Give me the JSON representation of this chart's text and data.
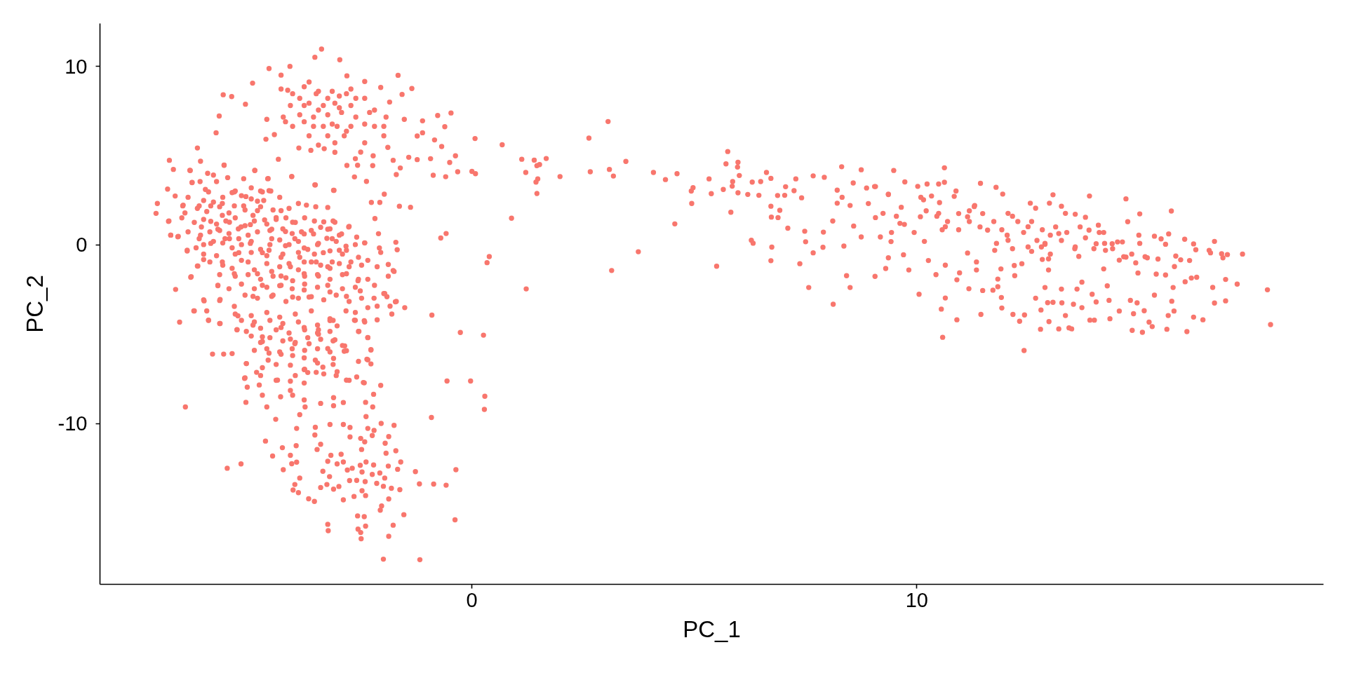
{
  "chart_data": {
    "type": "scatter",
    "xlabel": "PC_1",
    "ylabel": "PC_2",
    "xlim": [
      -8.36,
      19.14
    ],
    "ylim": [
      -19.0,
      12.4
    ],
    "xticks": [
      0,
      10
    ],
    "yticks": [
      -10,
      0,
      10
    ],
    "grid": false,
    "marker": "circle",
    "series": [
      {
        "color": "#f8766d",
        "x": [
          -3.38,
          -3.53,
          -2.97,
          -4.09,
          -4.56,
          -4.93,
          -5.59,
          -5.4,
          -5.68,
          -5.75,
          -6.17,
          -5.09,
          -1.66,
          -1.35,
          -0.47,
          -0.77,
          0.07,
          0.0,
          0.08,
          -0.32,
          -0.59,
          -0.87,
          -0.37,
          -0.5,
          -0.93,
          -1.23,
          -1.42,
          -1.61,
          -1.7,
          -1.77,
          -0.68,
          -0.84,
          -1.11,
          -1.23,
          -1.11,
          -1.52,
          -0.61,
          -3.66,
          -4.29,
          -2.81,
          -2.41,
          -2.05,
          -1.85,
          -1.57,
          -4.14,
          -3.87,
          -3.5,
          -3.14,
          -2.72,
          -2.98,
          -3.45,
          -3.77,
          -4.19,
          -4.61,
          -4.63,
          -4.44,
          -3.56,
          -3.14,
          -2.82,
          -2.41,
          -2.19,
          -1.98,
          -1.89,
          -2.41,
          -3.08,
          -3.32,
          -3.62,
          -3.89,
          -4.35,
          -2.5,
          -2.22,
          -2.62,
          -2.81,
          -2.57,
          -2.23,
          -2.64,
          -2.37,
          -4.05,
          -3.53,
          -3.11,
          -6.8,
          -6.71,
          -6.1,
          -6.34,
          -5.57,
          -4.88,
          -4.58,
          -6.84,
          -7.07,
          -7.1,
          -6.82,
          -6.77,
          -6.6,
          -6.4,
          -6.66,
          -6.32,
          -6.16,
          -6.03,
          -6.5,
          -6.29,
          -5.92,
          -6.13,
          -6.08,
          -5.87,
          -5.61,
          -5.34,
          -5.13,
          -5.45,
          -5.24,
          -4.98,
          -4.71,
          -4.56,
          -4.82,
          -4.5,
          -4.29,
          -4.03,
          -3.77,
          -4.56,
          -4.19,
          -3.87,
          -3.45,
          -3.24,
          -3.08,
          -2.77,
          -2.59,
          -2.98,
          -2.72,
          -2.41,
          -2.1,
          -2.18,
          -2.26,
          -2.07,
          -1.97,
          -1.63,
          -1.38,
          -1.71,
          -1.68,
          -2.08,
          -0.7,
          -0.58,
          0.34,
          0.39,
          -1.88,
          -1.75,
          -1.96,
          -1.72,
          -1.51,
          -2.19,
          -2.51,
          -2.82,
          -3.24,
          -3.66,
          -4.03,
          -4.5,
          -4.92,
          -5.34,
          -5.71,
          -5.66,
          -6.02,
          -4.82,
          -4.29,
          -3.77,
          -3.24,
          -2.82,
          -2.56,
          -5.87,
          -5.61,
          -5.34,
          -5.08,
          -4.82,
          -5.45,
          -5.19,
          -4.92,
          -4.66,
          -4.4,
          -4.19,
          -3.98,
          -3.77,
          -3.56,
          -3.34,
          -3.14,
          -2.93,
          -4.5,
          -4.29,
          -4.08,
          -3.77,
          -3.5,
          -4.71,
          -4.98,
          -5.24,
          -5.55,
          -5.71,
          -5.87,
          -6.13,
          -5.03,
          -4.5,
          -4.03,
          -3.45,
          -3.14,
          -2.82,
          -4.29,
          -4.71,
          -3.77,
          -5.34,
          -5.61,
          -6.57,
          -6.25,
          -5.92,
          -5.66,
          -5.83,
          -5.58,
          -5.39,
          -6.44,
          -5.5,
          -5.19,
          -5.28,
          -5.07,
          -5.11,
          -5.05,
          -5.08,
          -4.71,
          -4.61,
          -4.41,
          -4.78,
          -4.84,
          -4.71,
          -4.56,
          -4.29,
          -4.08,
          -3.77,
          -3.45,
          -3.19,
          -3.03,
          -3.24,
          -3.08,
          -3.35,
          -3.03,
          -3.77,
          -4.08,
          -4.03,
          -3.77,
          -3.4,
          -3.11,
          -3.87,
          -2.89,
          -2.82,
          -2.59,
          -2.44,
          -2.05,
          -2.21,
          -2.39,
          -2.23,
          -2.38,
          -2.86,
          -2.82,
          -2.54,
          -2.34,
          -2.27,
          -2.36,
          -2.27,
          -2.64,
          -2.42,
          -2.13,
          -1.8,
          -0.9,
          -0.26,
          0.26,
          -0.56,
          -0.03,
          0.29,
          0.28,
          -0.91,
          -3.52,
          -3.53,
          -3.4,
          -3.48,
          -3.19,
          -2.89,
          -2.74,
          -3.94,
          -4.64,
          -4.26,
          -3.95,
          -4.48,
          -4.08,
          -3.94,
          -4.24,
          -4.05,
          -3.87,
          -3.98,
          -4.02,
          -3.9,
          -3.67,
          -3.54,
          -3.4,
          -3.26,
          -3.11,
          -2.99,
          -2.89,
          -3.35,
          -3.2,
          -3.24,
          -3.17,
          -2.94,
          -3.03,
          -2.89,
          -2.8,
          -2.69,
          -2.51,
          -2.47,
          -2.75,
          -2.59,
          -2.4,
          -2.47,
          -2.39,
          -2.65,
          -2.74,
          -2.5,
          -2.41,
          -2.48,
          -2.38,
          -2.21,
          -2.04,
          -1.75,
          -2.34,
          -2.2,
          -2.24,
          -1.87,
          -1.95,
          -1.71,
          -1.93,
          -1.6,
          -1.88,
          -1.67,
          -2.07,
          -2.24,
          -1.96,
          -2.14,
          -1.99,
          -1.81,
          -1.62,
          -1.87,
          -1.27,
          -1.18,
          -0.86,
          -0.58,
          -0.36,
          -0.38,
          -2.03,
          -2.06,
          -1.53,
          -2.57,
          -2.42,
          -3.24,
          -3.23,
          -2.56,
          -2.5,
          -2.39,
          -2.49,
          -1.77,
          -1.87,
          -1.99,
          -1.17,
          -5.26,
          -4.92,
          -4.71,
          -4.58,
          -4.37,
          -4.3,
          -4.08,
          -3.77,
          -3.75,
          -3.5,
          -3.11,
          -3.11,
          -3.77,
          -4.03,
          -3.52,
          -3.98,
          -3.66,
          -4.29,
          -3.45,
          0.68,
          1.12,
          1.4,
          1.46,
          1.52,
          1.67,
          1.21,
          1.48,
          1.44,
          1.46,
          1.98,
          2.63,
          3.06,
          2.66,
          3.09,
          3.18,
          3.46,
          0.89,
          1.22,
          3.14,
          3.74,
          4.08,
          4.35,
          4.61,
          4.93,
          4.97,
          4.94,
          4.56,
          5.33,
          5.38,
          5.5,
          5.65,
          5.75,
          5.71,
          5.98,
          5.97,
          6.01,
          5.86,
          5.85,
          5.98,
          5.82,
          6.2,
          6.3,
          6.49,
          6.62,
          6.72,
          6.45,
          6.72,
          6.73,
          6.88,
          6.92,
          6.28,
          6.32,
          6.74,
          6.72,
          7.1,
          7.37,
          7.05,
          7.28,
          7.24,
          7.03,
          6.87,
          7.41,
          7.48,
          7.5,
          8.31,
          10.62,
          8.75,
          9.48,
          7.67,
          7.57,
          8.12,
          8.5,
          8.42,
          7.67,
          7.89,
          7.9,
          7.92,
          8.21,
          8.21,
          8.11,
          8.36,
          8.58,
          8.57,
          8.75,
          8.87,
          9.07,
          8.91,
          9.07,
          9.18,
          9.06,
          9.3,
          9.36,
          9.42,
          9.43,
          9.36,
          9.65,
          9.73,
          9.7,
          9.82,
          10.05,
          9.94,
          10.02,
          10.23,
          10.49,
          10.62,
          10.26,
          10.17,
          10.43,
          10.55,
          10.58,
          10.64,
          10.64,
          10.9,
          10.9,
          10.96,
          10.88,
          10.84,
          11.14,
          11.17,
          11.34,
          11.34,
          11.44,
          11.43,
          11.48,
          11.71,
          11.78,
          11.93,
          11.82,
          11.82,
          11.9,
          11.91,
          11.89,
          12.16,
          12.31,
          12.42,
          12.41,
          12.19,
          12.2,
          12.36,
          12.67,
          12.78,
          12.79,
          12.55,
          12.67,
          13.06,
          12.98,
          12.88,
          12.96,
          12.96,
          12.88,
          12.94,
          12.97,
          13.06,
          13.19,
          13.25,
          13.25,
          13.26,
          13.34,
          13.42,
          13.48,
          13.52,
          13.34,
          13.56,
          13.79,
          13.64,
          13.71,
          13.6,
          13.71,
          13.88,
          13.89,
          13.99,
          13.94,
          14.03,
          14.08,
          14.2,
          14.24,
          14.2,
          14.28,
          14.32,
          14.34,
          14.55,
          14.51,
          14.62,
          14.7,
          14.74,
          14.7,
          14.8,
          14.84,
          14.87,
          14.95,
          14.99,
          15.01,
          14.92,
          14.97,
          15.07,
          15.11,
          15.18,
          15.22,
          15.29,
          15.34,
          15.34,
          15.38,
          15.42,
          15.49,
          15.59,
          15.59,
          15.62,
          15.65,
          15.66,
          15.72,
          15.73,
          15.78,
          15.79,
          15.76,
          15.82,
          15.93,
          16.02,
          16.03,
          16.07,
          16.13,
          16.17,
          16.22,
          16.22,
          16.27,
          16.29,
          16.43,
          16.57,
          16.6,
          16.65,
          16.69,
          16.69,
          16.85,
          16.88,
          16.94,
          16.94,
          16.98,
          17.2,
          17.32,
          17.88,
          17.95,
          10.15,
          10.49,
          10.64,
          11.14,
          11.29,
          11.59,
          12.05,
          12.05,
          12.5,
          12.8,
          13.19,
          13.56,
          14.03,
          13.87,
          12.5,
          11.75,
          10.08,
          9.62,
          9.24,
          14.39,
          14.55,
          -6.33,
          -5.94,
          -5.81,
          -5.57,
          -5.13,
          -4.88,
          -4.59,
          -4.05,
          -3.52,
          -3.1,
          -6.29,
          -6.11,
          -5.99,
          -5.74,
          -5.49,
          -5.32,
          -4.96,
          -4.75,
          -4.52,
          -6.67,
          -6.49,
          -6.38,
          -6.03,
          -5.81,
          -5.6,
          -5.39,
          -5.18,
          -4.96,
          -4.68,
          -4.32,
          -4.11,
          -3.9,
          -3.72,
          -3.51,
          -3.24,
          -6.45,
          -6.17,
          -5.96,
          -5.67,
          -5.46,
          -5.1,
          -4.75,
          -4.47,
          -6.81,
          -6.52,
          -6.24,
          -6.03,
          -5.74,
          -5.53,
          -5.32,
          -5.1,
          -4.89,
          -4.61,
          -4.4,
          -4.18,
          -3.97,
          -3.76,
          -3.54,
          -3.33,
          -3.12,
          -2.76,
          -6.77,
          -6.61,
          -6.38,
          -6.1,
          -5.89,
          -5.67,
          -5.46,
          -5.25,
          -5.03,
          -4.82,
          -4.54,
          -4.25,
          -4.04,
          -3.83,
          -3.61,
          -3.4,
          -3.19,
          -2.98,
          -6.4,
          -6.2,
          -6.03,
          -5.81,
          -5.6,
          -5.39,
          -5.18,
          -4.96,
          -4.75,
          -4.54,
          -4.32,
          -4.11,
          -3.9,
          -3.69,
          -3.47,
          -3.26,
          -3.05,
          -2.83,
          -2.62,
          -2.41,
          -6.03,
          -5.74,
          -5.32,
          -4.96,
          -4.61,
          -4.25,
          -3.9,
          -3.54,
          -3.19,
          -2.91,
          -2.55,
          -2.34,
          -2.05,
          -6.17,
          -5.89,
          -5.6,
          -5.39,
          -5.18,
          -4.89,
          -4.61,
          -4.32,
          -4.11,
          -3.9,
          -3.61,
          -3.4,
          -3.19,
          -2.98,
          -2.76,
          -2.48,
          -2.13,
          -1.77,
          -6.31,
          -5.67,
          -5.32,
          -5.03,
          -4.75,
          -4.47,
          -4.18,
          -3.76,
          -3.47,
          -3.19,
          -2.91,
          -2.55,
          -2.34,
          -1.88,
          -5.71,
          -5.46,
          -5.18,
          -4.89,
          -4.61,
          -4.32,
          -4.04,
          -3.76,
          -3.47,
          -3.19,
          -2.91,
          -2.62,
          -6.03,
          -5.67,
          -5.1,
          -4.82,
          -4.47,
          -4.18,
          -3.9,
          -3.61,
          -3.33,
          -3.05,
          -2.76,
          -2.48,
          -2.2,
          -1.91,
          -1.7,
          -1.98,
          -6.24,
          -5.96,
          -5.32,
          -4.96,
          -4.61,
          -4.32,
          -3.97,
          -3.61,
          -3.19,
          -2.83,
          -2.62,
          -2.34,
          -2.13,
          -1.84,
          -5.92,
          -5.67,
          -5.18,
          -4.89,
          -4.54,
          -4.25,
          -3.9,
          -3.47,
          -3.12,
          -2.62,
          -2.41,
          -5.28,
          -5.07,
          -4.75,
          -4.4,
          -4.11,
          -3.76,
          -3.47,
          -3.19,
          -2.55,
          -4.96,
          -4.75,
          -4.54,
          -4.25,
          -3.97,
          -3.69,
          -3.4,
          -3.12,
          -2.91,
          -2.34,
          -4.89,
          -4.61,
          -4.32,
          -4.04,
          -3.76,
          -3.47,
          -3.19,
          -2.87,
          -2.27,
          -5.07,
          -4.71,
          -4.4,
          -4.08,
          -3.76,
          -3.47,
          -3.12,
          -2.55,
          -2.34,
          -5.1,
          -4.75,
          -4.4,
          -3.97,
          -3.69,
          -3.33,
          -3.05,
          -2.76,
          -2.42,
          -4.29,
          -4.03,
          -3.77,
          -3.45,
          -3.24,
          -2.98,
          -2.82,
          -2.61,
          -4.08,
          -3.66,
          -3.34,
          -3.08,
          -2.72,
          -2.41,
          -4.24,
          -3.87,
          -3.56,
          -3.24,
          -2.93,
          -2.61,
          -2.3,
          -4.03,
          -3.77,
          -3.34,
          -3.03,
          -2.72,
          -2.19,
          -1.93,
          -3.66,
          -3.24,
          -2.87,
          -1.98,
          -3.45,
          -3.08,
          10.09,
          10.33,
          10.51,
          10.21,
          10.45,
          10.69,
          10.94,
          11.18,
          11.3,
          11.48,
          11.42,
          11.73,
          11.91,
          12.15,
          12.03,
          12.27,
          12.4,
          12.58,
          12.7,
          12.82,
          12.88,
          13.0,
          13.12,
          13.25,
          13.37,
          13.55,
          13.67,
          13.79,
          13.98,
          14.1,
          14.22,
          14.4,
          14.65,
          14.83,
          15.01,
          15.13,
          12.82,
          13.0,
          12.58,
          12.15,
          11.79,
          11.18,
          10.94,
          10.57,
          9.54,
          9.72,
          9.36,
          9.05,
          8.32,
          8.5
        ],
        "values": [
          10.97,
          10.51,
          10.37,
          10.0,
          9.88,
          9.06,
          8.41,
          8.31,
          7.22,
          6.28,
          5.43,
          7.88,
          9.5,
          8.76,
          7.39,
          7.25,
          5.96,
          4.12,
          3.99,
          4.1,
          3.82,
          3.9,
          4.99,
          4.62,
          4.83,
          4.78,
          4.91,
          4.31,
          3.94,
          4.74,
          5.51,
          5.88,
          6.28,
          6.1,
          6.95,
          7.03,
          6.62,
          9.12,
          9.51,
          9.47,
          9.15,
          8.82,
          8.0,
          8.43,
          8.66,
          8.21,
          8.47,
          8.6,
          8.73,
          7.68,
          7.55,
          7.81,
          6.9,
          7.03,
          5.92,
          6.18,
          6.64,
          6.77,
          6.37,
          6.77,
          7.55,
          6.64,
          5.46,
          5.72,
          5.19,
          5.39,
          5.3,
          5.43,
          4.8,
          5.2,
          4.99,
          4.83,
          4.45,
          4.46,
          4.44,
          3.81,
          3.56,
          3.82,
          3.36,
          3.06,
          4.74,
          4.23,
          4.69,
          4.18,
          4.46,
          4.18,
          3.72,
          3.13,
          2.32,
          1.77,
          1.32,
          0.55,
          0.48,
          -0.34,
          -2.49,
          -1.81,
          -1.18,
          -0.82,
          2.19,
          3.49,
          2.97,
          2.19,
          1.01,
          1.32,
          2.32,
          2.97,
          2.19,
          1.27,
          0.35,
          1.14,
          2.97,
          3.04,
          1.92,
          0.88,
          1.92,
          1.27,
          0.62,
          -0.3,
          -0.04,
          -0.69,
          0.09,
          0.88,
          1.27,
          1.01,
          0.44,
          -0.3,
          -0.95,
          0.12,
          0.63,
          1.48,
          2.38,
          2.38,
          2.84,
          2.17,
          2.11,
          0.15,
          -0.27,
          -0.17,
          0.39,
          0.64,
          -0.99,
          -0.65,
          -1.09,
          -1.48,
          -2.72,
          -3.18,
          -3.51,
          -2.26,
          -2.57,
          -2.88,
          -2.26,
          -2.92,
          -2.92,
          -2.88,
          -2.88,
          -3.44,
          -2.26,
          -3.05,
          -3.13,
          -1.61,
          -1.74,
          -1.61,
          -1.22,
          -1.61,
          -2.0,
          2.19,
          1.66,
          2.19,
          2.71,
          2.45,
          0.35,
          1.01,
          1.66,
          1.4,
          1.53,
          0.75,
          0.35,
          -0.17,
          0.62,
          -0.43,
          0.35,
          0.62,
          0.35,
          -0.69,
          -1.22,
          -0.95,
          -0.95,
          -0.43,
          0.09,
          -0.43,
          0.35,
          0.88,
          0.09,
          0.35,
          -0.95,
          -1.48,
          -2.0,
          -1.74,
          -0.95,
          -0.3,
          -2.26,
          -2.26,
          -2.52,
          -1.61,
          -0.95,
          -4.32,
          -3.69,
          -4.21,
          -4.4,
          -6.11,
          -6.11,
          -6.08,
          -9.07,
          -12.5,
          -12.26,
          -4.74,
          -6.64,
          -7.47,
          -7.96,
          -8.81,
          -8.41,
          -9.07,
          -9.76,
          -7.84,
          -7.13,
          -5.14,
          -6.06,
          -4.62,
          -5.27,
          -4.62,
          -4.75,
          -4.23,
          -4.53,
          -5.8,
          -5.31,
          -6.84,
          -7.1,
          -6.98,
          -7.63,
          -8.41,
          -8.68,
          -8.87,
          -9.0,
          -9.5,
          -8.82,
          -7.57,
          -7.39,
          -7.7,
          -7.86,
          -8.36,
          -8.81,
          -9.07,
          -9.61,
          -5.65,
          -5.92,
          -4.84,
          -5.18,
          -5.88,
          -6.4,
          -6.66,
          -4.21,
          -4.24,
          -4.19,
          -3.87,
          -3.93,
          -4.9,
          -5.05,
          -7.62,
          -7.62,
          -8.47,
          -9.21,
          -9.66,
          -10.21,
          -10.64,
          -11.16,
          -11.45,
          -10.05,
          -10.05,
          -10.22,
          -10.27,
          -10.98,
          -11.35,
          -11.24,
          -11.82,
          -11.78,
          -12.16,
          -12.58,
          -12.25,
          -13.05,
          -13.41,
          -13.72,
          -13.87,
          -14.21,
          -14.36,
          -13.58,
          -13.41,
          -13.67,
          -13.52,
          -14.27,
          -12.67,
          -12.97,
          -12.11,
          -11.78,
          -11.72,
          -12.26,
          -12.15,
          -12.6,
          -12.5,
          -12.34,
          -12.71,
          -13.19,
          -13.18,
          -13.25,
          -13.76,
          -14.03,
          -14.08,
          -10.75,
          -10.83,
          -11.02,
          -11.45,
          -12.15,
          -12.32,
          -9.99,
          -10.1,
          -10.27,
          -10.38,
          -10.67,
          -10.73,
          -11.1,
          -11.52,
          -11.66,
          -12.15,
          -12.38,
          -12.56,
          -12.77,
          -12.85,
          -13.05,
          -13.35,
          -13.51,
          -13.62,
          -13.7,
          -14.22,
          -12.69,
          -13.38,
          -13.39,
          -13.45,
          -12.58,
          -15.39,
          -14.61,
          -14.85,
          -15.1,
          -15.17,
          -15.21,
          -15.64,
          -16.0,
          -15.91,
          -16.1,
          -15.74,
          -16.45,
          -15.69,
          -16.31,
          -17.59,
          -17.62,
          -3.97,
          -4.49,
          -5.41,
          -6.45,
          -7.57,
          -8.5,
          -8.15,
          -7.73,
          -9.07,
          -7.13,
          -8.55,
          -6.35,
          -6.32,
          -6.19,
          -6.45,
          -5.53,
          -5.53,
          -6.12,
          -5.0,
          5.61,
          4.8,
          4.75,
          4.44,
          4.5,
          4.84,
          4.06,
          3.7,
          3.52,
          2.88,
          3.83,
          5.98,
          6.91,
          4.1,
          4.23,
          3.86,
          4.68,
          1.5,
          -2.46,
          -1.43,
          -0.38,
          4.06,
          3.66,
          3.99,
          3.02,
          3.21,
          2.32,
          1.18,
          3.7,
          2.87,
          -1.19,
          3.11,
          5.23,
          4.54,
          4.63,
          4.36,
          3.89,
          3.55,
          3.29,
          2.92,
          1.83,
          2.83,
          3.52,
          3.55,
          4.06,
          3.73,
          2.78,
          2.17,
          1.56,
          1.53,
          1.94,
          0.26,
          0.1,
          -0.12,
          -0.88,
          0.94,
          -1.05,
          3.26,
          3.7,
          3.04,
          2.78,
          2.77,
          2.64,
          0.77,
          0.18,
          4.38,
          4.32,
          4.21,
          4.17,
          3.87,
          -2.38,
          -3.32,
          -2.38,
          -1.72,
          -0.44,
          -0.13,
          0.72,
          3.79,
          3.07,
          2.34,
          1.34,
          -0.06,
          1.06,
          3.47,
          0.45,
          3.19,
          3.27,
          2.32,
          1.53,
          0.45,
          -1.76,
          -1.32,
          -0.72,
          0.19,
          0.7,
          2.85,
          2.11,
          3.53,
          -0.55,
          -1.4,
          -2.76,
          0.7,
          3.28,
          3.41,
          3.41,
          3.51,
          -0.87,
          0.2,
          -1.66,
          -3.59,
          -5.17,
          -2.97,
          -1.13,
          -4.19,
          -1.95,
          -1.56,
          3.02,
          2.72,
          -0.45,
          -2.45,
          -0.95,
          -1.4,
          -3.89,
          3.45,
          -2.55,
          -2.53,
          3.23,
          2.85,
          -1.91,
          -2.34,
          -2.94,
          -3.53,
          -1.34,
          -3.89,
          -4.27,
          -3.92,
          -5.91,
          -1.15,
          -1.72,
          -1.05,
          -2.98,
          -4.72,
          -3.64,
          2.34,
          2.06,
          2.81,
          2.34,
          0.04,
          -0.78,
          -1.4,
          -2.38,
          -3.23,
          -4.29,
          -3.21,
          -4.7,
          2.17,
          -2.47,
          -3.24,
          -3.95,
          -4.64,
          -4.7,
          -3.32,
          1.77,
          1.72,
          1.55,
          -0.64,
          -2.08,
          -2.47,
          -3.51,
          2.74,
          -4.21,
          -4.21,
          -2.76,
          -3.19,
          1.11,
          0.7,
          -0.3,
          -1.34,
          -2.29,
          -3.1,
          -4.13,
          -3.7,
          0.17,
          0.17,
          2.58,
          1.3,
          -0.68,
          -3.1,
          -4.78,
          -3.85,
          -3.24,
          0.55,
          1.74,
          -1.0,
          -1.57,
          -4.89,
          -3.68,
          -0.72,
          -4.32,
          -4.57,
          -2.81,
          0.49,
          -1.63,
          -0.79,
          0.34,
          0.04,
          -1.68,
          -4.72,
          -3.95,
          0.62,
          1.9,
          -3.15,
          -3.7,
          -1.21,
          -2.38,
          -0.62,
          -0.83,
          0.32,
          -2.06,
          -4.85,
          -0.87,
          -1.85,
          0.06,
          -4.04,
          -0.27,
          -1.81,
          -4.19,
          -0.3,
          -0.44,
          -2.38,
          0.2,
          -3.25,
          -0.49,
          -0.72,
          -1.93,
          -3.13,
          -0.54,
          -2.19,
          -0.51,
          -2.51,
          -4.46,
          2.53,
          1.77,
          1.02,
          1.58,
          2.15,
          0.83,
          1.77,
          0.26,
          1.02,
          -0.11,
          0.64,
          -0.11,
          0.07,
          0.83,
          -0.11,
          -0.3,
          1.58,
          1.21,
          1.77,
          0.07,
          -0.85,
          4.17,
          4.01,
          3.91,
          4.47,
          3.71,
          4.17,
          3.71,
          3.84,
          3.36,
          3.06,
          3.5,
          3.55,
          3.11,
          3.55,
          3.77,
          3.02,
          3.2,
          3.02,
          3.02,
          2.74,
          2.23,
          2.67,
          2.49,
          2.4,
          2.67,
          2.93,
          2.76,
          2.58,
          2.49,
          2.67,
          2.05,
          2.32,
          2.23,
          2.14,
          2.1,
          1.79,
          2.05,
          1.87,
          2.14,
          1.79,
          1.96,
          2.14,
          1.96,
          1.34,
          1.52,
          1.26,
          1.43,
          1.17,
          1.34,
          1.52,
          1.08,
          1.34,
          1.17,
          1.43,
          1.52,
          1.26,
          1.52,
          1.34,
          1.29,
          1.34,
          1.04,
          0.55,
          0.46,
          0.73,
          0.55,
          0.73,
          0.81,
          0.64,
          0.9,
          0.55,
          0.73,
          0.81,
          0.9,
          0.64,
          0.73,
          0.81,
          0.99,
          0.9,
          0.55,
          -0.3,
          -0.16,
          0.02,
          0.2,
          0.11,
          -0.16,
          0.02,
          0.2,
          -0.25,
          0.02,
          0.28,
          0.02,
          0.2,
          -0.25,
          0.02,
          0.37,
          0.2,
          -0.07,
          0.02,
          0.11,
          -0.51,
          -0.6,
          -0.51,
          -0.42,
          -0.6,
          -0.51,
          -0.42,
          -0.51,
          -0.33,
          -0.51,
          -0.69,
          -0.86,
          -0.42,
          -1.18,
          -0.95,
          -1.13,
          -1.31,
          -0.86,
          -1.39,
          -1.04,
          -1.22,
          -1.04,
          -1.39,
          -0.95,
          -1.13,
          -1.31,
          -1.04,
          -1.22,
          -1.13,
          -1.22,
          -1.43,
          -1.78,
          -1.66,
          -1.75,
          -1.66,
          -1.92,
          -1.75,
          -1.84,
          -1.75,
          -1.66,
          -1.92,
          -1.66,
          -1.92,
          -1.92,
          -1.75,
          -2.28,
          -2.45,
          -2.19,
          -2.45,
          -2.37,
          -2.28,
          -2.45,
          -2.19,
          -2.37,
          -2.63,
          -2.45,
          -2.37,
          -3.07,
          -3.11,
          -2.81,
          -2.98,
          -2.81,
          -3.16,
          -2.98,
          -2.9,
          -3.07,
          -2.81,
          -3.16,
          -2.98,
          -2.98,
          -2.9,
          -3.16,
          -2.72,
          -3.69,
          -3.69,
          -3.87,
          -3.96,
          -3.78,
          -4.04,
          -3.87,
          -3.69,
          -4.13,
          -3.69,
          -3.78,
          -3.51,
          -3.43,
          -3.43,
          -4.22,
          -4.4,
          -4.22,
          -4.31,
          -4.22,
          -4.4,
          -4.31,
          -4.49,
          -4.22,
          -4.22,
          -4.31,
          -4.75,
          -4.84,
          -4.66,
          -4.75,
          -4.93,
          -4.75,
          -4.93,
          -4.84,
          -4.84,
          -5.1,
          -5.46,
          -5.19,
          -5.37,
          -5.46,
          -5.19,
          -5.28,
          -5.37,
          -5.63,
          -5.19,
          -5.9,
          -5.81,
          -5.99,
          -5.81,
          -5.9,
          -5.81,
          -5.99,
          -5.95,
          -5.86,
          -6.64,
          -6.87,
          -6.69,
          -6.73,
          -6.96,
          -6.61,
          -6.69,
          -6.52,
          -6.43,
          -7.44,
          -7.31,
          -7.58,
          -7.31,
          -7.14,
          -7.22,
          -7.31,
          -7.58,
          -7.72,
          8.73,
          8.47,
          8.86,
          8.6,
          8.21,
          8.34,
          8.47,
          8.21,
          7.81,
          7.94,
          7.81,
          7.94,
          7.81,
          8.21,
          7.16,
          7.29,
          7.16,
          7.29,
          7.42,
          7.16,
          7.42,
          6.64,
          6.9,
          6.64,
          6.64,
          6.64,
          6.64,
          7.16,
          6.11,
          6.11,
          6.11,
          6.11,
          5.59,
          5.72,
          2.67,
          2.74,
          2.37,
          1.91,
          1.61,
          1.31,
          1.76,
          1.91,
          2.21,
          1.76,
          1.01,
          1.31,
          0.85,
          1.61,
          0.55,
          1.31,
          0.7,
          1.31,
          0.25,
          0.85,
          0.09,
          0.55,
          1.01,
          0.25,
          0.7,
          -0.21,
          1.01,
          0.4,
          -0.21,
          0.7,
          0.09,
          -0.21,
          -0.66,
          -0.51,
          0.09,
          -0.66,
          -0.81,
          -0.51,
          -0.36,
          -0.21,
          0.09,
          1.31,
          0.85,
          0.85,
          1.61,
          1.15,
          2.82,
          3.27,
          2.67,
          2.21
        ]
      }
    ]
  }
}
